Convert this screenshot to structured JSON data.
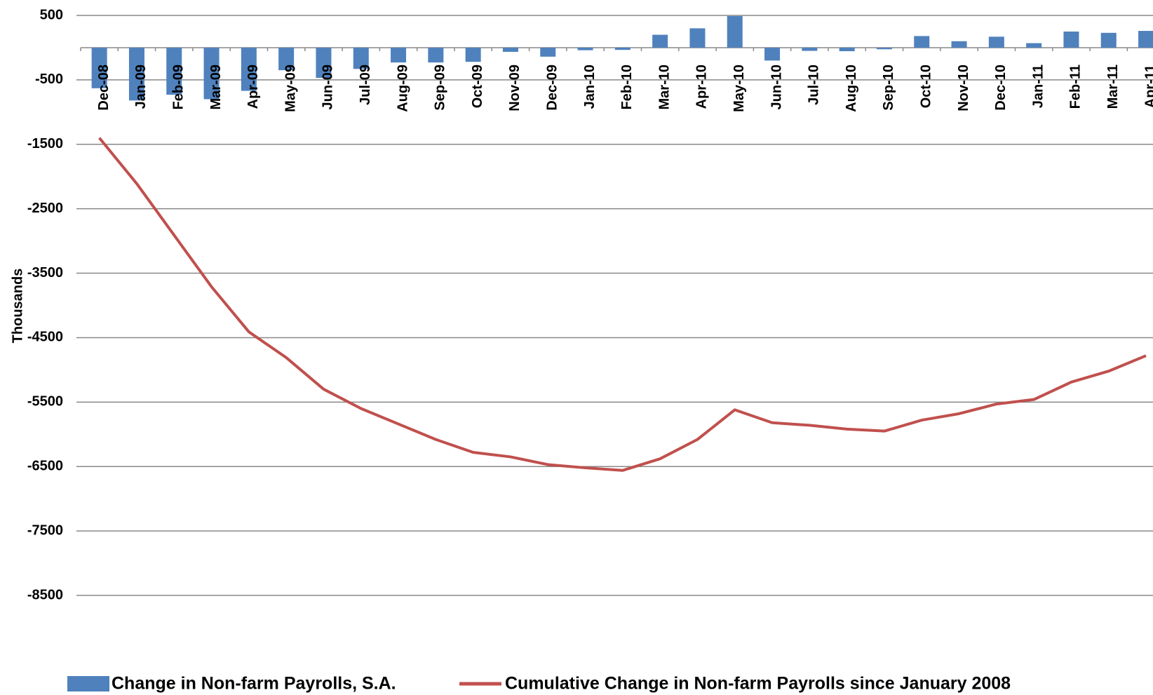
{
  "chart_data": {
    "type": "bar",
    "y_label": "Thousands",
    "categories": [
      "Dec-08",
      "Jan-09",
      "Feb-09",
      "Mar-09",
      "Apr-09",
      "May-09",
      "Jun-09",
      "Jul-09",
      "Aug-09",
      "Sep-09",
      "Oct-09",
      "Nov-09",
      "Dec-09",
      "Jan-10",
      "Feb-10",
      "Mar-10",
      "Apr-10",
      "May-10",
      "Jun-10",
      "Jul-10",
      "Aug-10",
      "Sep-10",
      "Oct-10",
      "Nov-10",
      "Dec-10",
      "Jan-11",
      "Feb-11",
      "Mar-11",
      "Apr-11"
    ],
    "series": [
      {
        "name": "Change in Non-farm Payrolls, S.A.",
        "type": "bar",
        "color": "#4f81bd",
        "values": [
          -630,
          -820,
          -730,
          -800,
          -670,
          -350,
          -470,
          -330,
          -230,
          -230,
          -220,
          -65,
          -140,
          -40,
          -35,
          200,
          300,
          490,
          -200,
          -50,
          -55,
          -25,
          180,
          100,
          170,
          70,
          250,
          230,
          260
        ]
      },
      {
        "name": "Cumulative Change in Non-farm Payrolls since January 2008",
        "type": "line",
        "color": "#c0504d",
        "values": [
          -1400,
          -2110,
          -2910,
          -3710,
          -4410,
          -4810,
          -5300,
          -5600,
          -5840,
          -6080,
          -6280,
          -6350,
          -6470,
          -6520,
          -6560,
          -6380,
          -6080,
          -5620,
          -5820,
          -5860,
          -5920,
          -5950,
          -5780,
          -5680,
          -5530,
          -5460,
          -5190,
          -5020,
          -4780
        ]
      }
    ],
    "ylim": [
      -8500,
      500
    ],
    "yticks": [
      500,
      -500,
      -1500,
      -2500,
      -3500,
      -4500,
      -5500,
      -6500,
      -7500,
      -8500
    ],
    "grid": true
  }
}
